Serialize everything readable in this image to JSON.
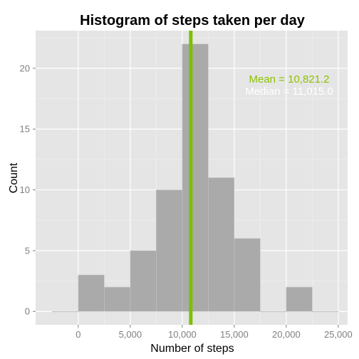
{
  "chart_data": {
    "type": "bar",
    "title": "Histogram of steps taken per day",
    "xlabel": "Number of steps",
    "ylabel": "Count",
    "bin_width": 2500,
    "bins": [
      {
        "start": -2500,
        "end": 0,
        "count": 0
      },
      {
        "start": 0,
        "end": 2500,
        "count": 3
      },
      {
        "start": 2500,
        "end": 5000,
        "count": 2
      },
      {
        "start": 5000,
        "end": 7500,
        "count": 5
      },
      {
        "start": 7500,
        "end": 10000,
        "count": 10
      },
      {
        "start": 10000,
        "end": 12500,
        "count": 22
      },
      {
        "start": 12500,
        "end": 15000,
        "count": 11
      },
      {
        "start": 15000,
        "end": 17500,
        "count": 6
      },
      {
        "start": 17500,
        "end": 20000,
        "count": 0
      },
      {
        "start": 20000,
        "end": 22500,
        "count": 2
      },
      {
        "start": 22500,
        "end": 25000,
        "count": 0
      }
    ],
    "xlim": [
      -4100,
      25900
    ],
    "ylim": [
      -1.1,
      23.1
    ],
    "x_ticks": [
      {
        "value": 0,
        "label": "0"
      },
      {
        "value": 5000,
        "label": "5,000"
      },
      {
        "value": 10000,
        "label": "10,000"
      },
      {
        "value": 15000,
        "label": "15,000"
      },
      {
        "value": 20000,
        "label": "20,000"
      },
      {
        "value": 25000,
        "label": "25,000"
      }
    ],
    "y_ticks": [
      {
        "value": 0,
        "label": "0"
      },
      {
        "value": 5,
        "label": "5"
      },
      {
        "value": 10,
        "label": "10"
      },
      {
        "value": 15,
        "label": "15"
      },
      {
        "value": 20,
        "label": "20"
      }
    ],
    "mean": 10821.2,
    "median": 11015.0,
    "mean_label": "Mean = 10,821.2",
    "median_label": "Median = 11,015.0",
    "grid": true,
    "colors": {
      "panel": "#e5e5e5",
      "grid": "#ffffff",
      "bar_fill": "#aaaaaa",
      "bar_outline": "#c4c4c4",
      "mean_line": "#7cc000",
      "mean_text": "#8dc100",
      "median_text": "#ffffff"
    }
  }
}
